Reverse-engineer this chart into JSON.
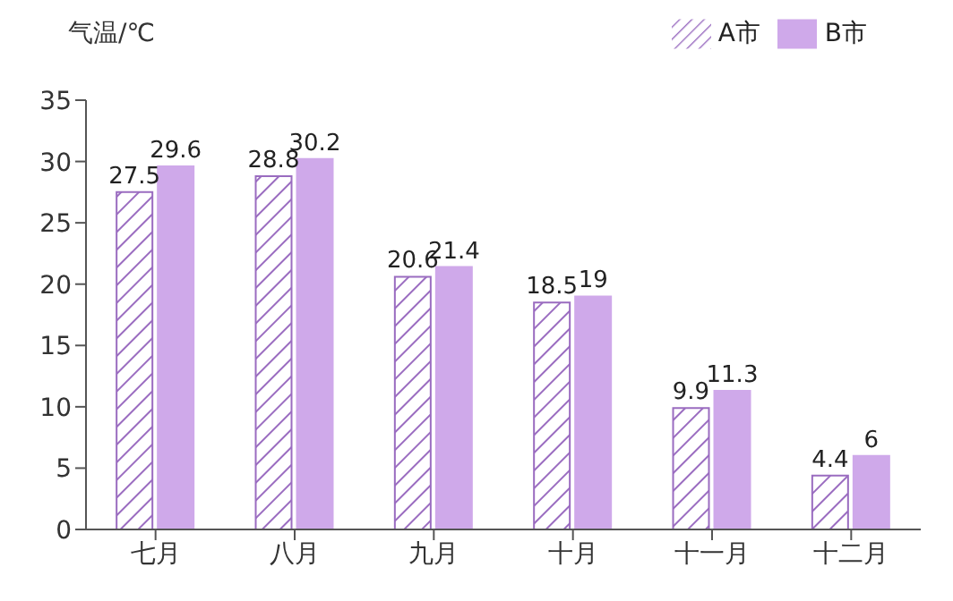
{
  "chart_data": {
    "type": "bar",
    "ylabel": "气温/℃",
    "categories": [
      "七月",
      "八月",
      "九月",
      "十月",
      "十一月",
      "十二月"
    ],
    "series": [
      {
        "name": "A市",
        "color": "#9a6cc0",
        "values": [
          27.5,
          28.8,
          20.6,
          18.5,
          9.9,
          4.4
        ]
      },
      {
        "name": "B市",
        "color": "#cfa9ea",
        "values": [
          29.6,
          30.2,
          21.4,
          19,
          11.3,
          6
        ]
      }
    ],
    "ylim": [
      0,
      35
    ],
    "yticks": [
      0,
      5,
      10,
      15,
      20,
      25,
      30,
      35
    ],
    "grid": false,
    "legend": "top right",
    "data_labels": true
  }
}
